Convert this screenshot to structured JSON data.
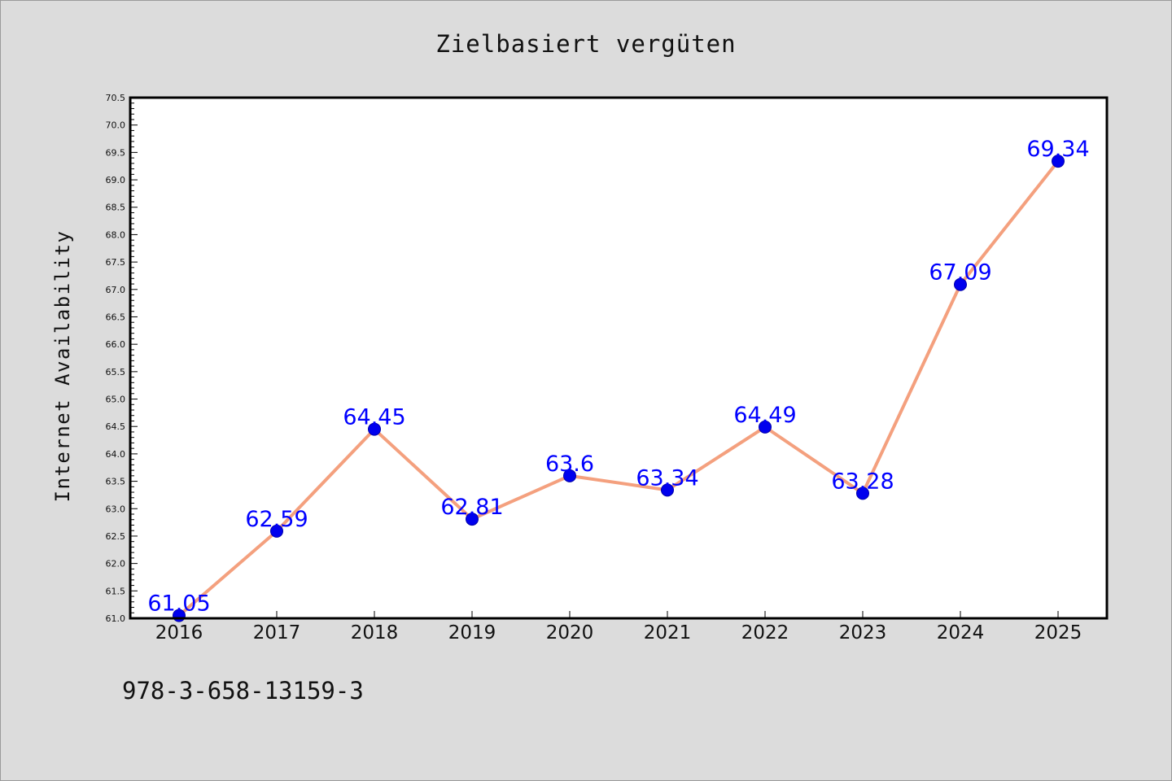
{
  "chart_data": {
    "type": "line",
    "title": "Zielbasiert vergüten",
    "xlabel": "",
    "ylabel": "Internet Availability",
    "categories": [
      "2016",
      "2017",
      "2018",
      "2019",
      "2020",
      "2021",
      "2022",
      "2023",
      "2024",
      "2025"
    ],
    "series": [
      {
        "values": [
          61.05,
          62.59,
          64.45,
          62.81,
          63.6,
          63.34,
          64.49,
          63.28,
          67.09,
          69.34
        ],
        "labels": [
          "61.05",
          "62.59",
          "64.45",
          "62.81",
          "63.6",
          "63.34",
          "64.49",
          "63.28",
          "67.09",
          "69.34"
        ],
        "line_color": "#f4a07e",
        "marker_color": "#0000ee"
      }
    ],
    "ylim": [
      61.0,
      70.5
    ],
    "yticks": [
      "61.0",
      "61.5",
      "62.0",
      "62.5",
      "63.0",
      "63.5",
      "64.0",
      "64.5",
      "65.0",
      "65.5",
      "66.0",
      "66.5",
      "67.0",
      "67.5",
      "68.0",
      "68.5",
      "69.0",
      "69.5",
      "70.0",
      "70.5"
    ],
    "grid": false,
    "legend": "none",
    "label_color": "#0000ff"
  },
  "footnote": "978-3-658-13159-3"
}
